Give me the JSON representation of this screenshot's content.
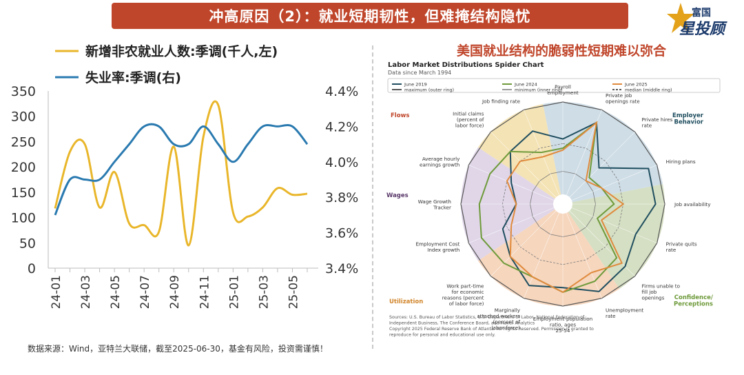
{
  "header": {
    "title": "冲高原因（2）：就业短期韧性，但难掩结构隐忧",
    "logo_small": "富国",
    "logo_main": "星投顾"
  },
  "footer": {
    "source": "数据来源：Wind，亚特兰大联储，截至2025-06-30，基金有风险，投资需谨慎！"
  },
  "colors": {
    "title_bg": "#c0462b",
    "payroll": "#e9b62a",
    "unemployment": "#2a7ab0",
    "right_title": "#c0462b"
  },
  "chart_data": [
    {
      "type": "line",
      "series": [
        {
          "name": "新增非农就业人数:季调(千人,左)",
          "axis": "left",
          "x": [
            "24-01",
            "24-02",
            "24-03",
            "24-04",
            "24-05",
            "24-06",
            "24-07",
            "24-08",
            "24-09",
            "24-10",
            "24-11",
            "24-12",
            "25-01",
            "25-02",
            "25-03",
            "25-04",
            "25-05",
            "25-06"
          ],
          "values": [
            118,
            230,
            245,
            120,
            190,
            88,
            85,
            72,
            240,
            45,
            260,
            322,
            110,
            102,
            120,
            158,
            145,
            147
          ]
        },
        {
          "name": "失业率:季调(右)",
          "axis": "right",
          "x": [
            "24-01",
            "24-02",
            "24-03",
            "24-04",
            "24-05",
            "24-06",
            "24-07",
            "24-08",
            "24-09",
            "24-10",
            "24-11",
            "24-12",
            "25-01",
            "25-02",
            "25-03",
            "25-04",
            "25-05",
            "25-06"
          ],
          "values": [
            3.7,
            3.9,
            3.9,
            3.9,
            4.0,
            4.1,
            4.2,
            4.2,
            4.1,
            4.1,
            4.2,
            4.1,
            4.0,
            4.1,
            4.2,
            4.2,
            4.2,
            4.1
          ]
        }
      ],
      "x_tick_labels": [
        "24-01",
        "24-03",
        "24-05",
        "24-07",
        "24-09",
        "24-11",
        "25-01",
        "25-03",
        "25-05"
      ],
      "y_left": {
        "ticks": [
          "0",
          "50",
          "100",
          "150",
          "200",
          "250",
          "300",
          "350"
        ],
        "ylim": [
          0,
          350
        ]
      },
      "y_right": {
        "ticks": [
          "3.4%",
          "3.6%",
          "3.8%",
          "4.0%",
          "4.2%",
          "4.4%"
        ],
        "ylim": [
          3.4,
          4.4
        ]
      },
      "legend": "top-left",
      "grid": false
    },
    {
      "type": "radar",
      "heading": "美国就业结构的脆弱性短期难以弥合",
      "title": "Labor Market Distributions Spider Chart",
      "subtitle": "Data since March 1994",
      "legend": [
        {
          "label": "June 2019",
          "color": "#1f4e5f",
          "style": "solid"
        },
        {
          "label": "June 2024",
          "color": "#6e9a3a",
          "style": "solid"
        },
        {
          "label": "June 2025",
          "color": "#e08a3c",
          "style": "solid"
        },
        {
          "label": "maximum (outer ring)",
          "color": "#555555",
          "style": "solid"
        },
        {
          "label": "minimum (inner ring)",
          "color": "#999999",
          "style": "solid"
        },
        {
          "label": "median (middle ring)",
          "color": "#555555",
          "style": "dashed"
        }
      ],
      "axes": [
        "Payroll employment",
        "Private job openings rate",
        "Private hires rate",
        "Hiring plans",
        "Job availability",
        "Private quits rate",
        "Firms unable to fill job openings",
        "Unemployment rate",
        "Employment-population ratio, ages 25-54",
        "Marginally attached workers (percent of labor force)",
        "Work part-time for economic reasons (percent of labor force)",
        "Employment Cost Index growth",
        "Wage Growth Tracker",
        "Average hourly earnings growth",
        "Initial claims (percent of labor force)",
        "Job finding rate"
      ],
      "sectors": [
        {
          "label": "Flows",
          "color": "#f4e3b5",
          "from": 14,
          "to": 16
        },
        {
          "label": "Employer Behavior",
          "color": "#cfdde6",
          "from": 0,
          "to": 4
        },
        {
          "label": "Confidence/ Perceptions",
          "color": "#d5dfc3",
          "from": 4,
          "to": 7
        },
        {
          "label": "Utilization",
          "color": "#f6d6bd",
          "from": 7,
          "to": 11
        },
        {
          "label": "Wages",
          "color": "#e0d6e8",
          "from": 11,
          "to": 14
        }
      ],
      "series_values": {
        "June 2019": [
          0.6,
          0.85,
          0.45,
          0.9,
          0.9,
          0.75,
          0.85,
          0.92,
          0.8,
          0.85,
          0.7,
          0.6,
          0.4,
          0.5,
          0.7,
          0.75
        ],
        "June 2024": [
          0.5,
          0.85,
          0.3,
          0.35,
          0.45,
          0.3,
          0.72,
          0.8,
          0.85,
          0.75,
          0.8,
          0.85,
          0.8,
          0.75,
          0.7,
          0.5
        ],
        "June 2025": [
          0.48,
          0.85,
          0.25,
          0.35,
          0.55,
          0.35,
          0.8,
          0.7,
          0.85,
          0.75,
          0.7,
          0.5,
          0.4,
          0.55,
          0.55,
          0.45
        ]
      },
      "sources": "Sources: U.S. Bureau of Labor Statistics, U.S. Department of Labor, National Federation of Independent Business, The Conference Board, and Haver Analytics",
      "copyright": "Copyright 2025 Federal Reserve Bank of Atlanta. All Rights Reserved. Permission is granted to reproduce for personal and educational use only."
    }
  ]
}
